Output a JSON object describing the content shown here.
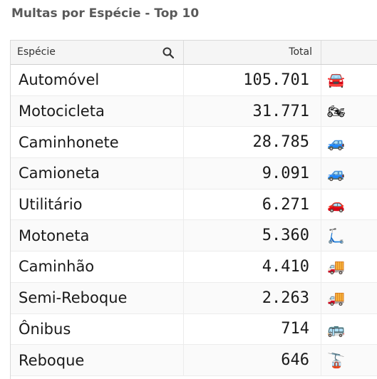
{
  "title": "Multas por Espécie - Top 10",
  "table": {
    "headers": {
      "especie": "Espécie",
      "total": "Total",
      "icon": ""
    },
    "rows": [
      {
        "especie": "Automóvel",
        "total": "105.701",
        "icon": "🚘",
        "icon_name": "car-icon"
      },
      {
        "especie": "Motocicleta",
        "total": "31.771",
        "icon": "🏍",
        "icon_name": "motorcycle-icon"
      },
      {
        "especie": "Caminhonete",
        "total": "28.785",
        "icon": "🚙",
        "icon_name": "pickup-icon"
      },
      {
        "especie": "Camioneta",
        "total": "9.091",
        "icon": "🚙",
        "icon_name": "suv-icon"
      },
      {
        "especie": "Utilitário",
        "total": "6.271",
        "icon": "🚗",
        "icon_name": "utility-car-icon"
      },
      {
        "especie": "Motoneta",
        "total": "5.360",
        "icon": "🛴",
        "icon_name": "scooter-icon"
      },
      {
        "especie": "Caminhão",
        "total": "4.410",
        "icon": "🚚",
        "icon_name": "truck-icon"
      },
      {
        "especie": "Semi-Reboque",
        "total": "2.263",
        "icon": "🚚",
        "icon_name": "semi-trailer-icon"
      },
      {
        "especie": "Ônibus",
        "total": "714",
        "icon": "🚌",
        "icon_name": "bus-icon"
      },
      {
        "especie": "Reboque",
        "total": "646",
        "icon": "🚡",
        "icon_name": "trailer-icon"
      }
    ]
  }
}
